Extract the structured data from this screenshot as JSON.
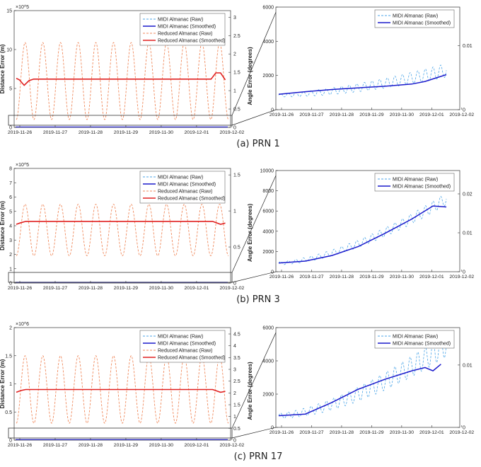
{
  "captions": [
    "(a) PRN 1",
    "(b) PRN 3",
    "(c) PRN 17"
  ],
  "chart_data": [
    {
      "type": "line",
      "panel": "PRN 1 full",
      "xlabel": "",
      "ylabel": "Distance Error (m)",
      "y2label": "Angle Error (degrees)",
      "y_exponent": "×10^5",
      "x_ticks": [
        "2019-11-26",
        "2019-11-27",
        "2019-11-28",
        "2019-11-29",
        "2019-11-30",
        "2019-12-01",
        "2019-12-02"
      ],
      "xlim": [
        0,
        6.7
      ],
      "ylim": [
        0,
        15
      ],
      "y_ticks": [
        0,
        5,
        10,
        15
      ],
      "y2lim": [
        0,
        3.2
      ],
      "y2_ticks": [
        0,
        0.5,
        1,
        1.5,
        2,
        2.5,
        3
      ],
      "legend": "top-right",
      "series": [
        {
          "name": "MIDI Almanac (Raw)",
          "color": "#4da6e8",
          "dash": true,
          "values": [
            0.05
          ]
        },
        {
          "name": "MIDI Almanac (Smoothed)",
          "color": "#1a1acc",
          "dash": false,
          "values": [
            0.05
          ]
        },
        {
          "name": "Reduced Almanac (Raw)",
          "color": "#f08a5d",
          "dash": true,
          "amplitude": [
            1.0,
            10.9
          ],
          "cycles": 12
        },
        {
          "name": "Reduced Almanac (Smoothed)",
          "color": "#e02020",
          "dash": false,
          "x": [
            0,
            0.1,
            0.25,
            0.4,
            0.55,
            6.15,
            6.3,
            6.45,
            6.6
          ],
          "values": [
            6.3,
            6.1,
            5.4,
            6.0,
            6.2,
            6.2,
            7.0,
            7.0,
            6.1
          ]
        }
      ]
    },
    {
      "type": "line",
      "panel": "PRN 1 zoom",
      "ylim": [
        0,
        6000
      ],
      "y_ticks": [
        0,
        2000,
        4000,
        6000
      ],
      "y2_ticks": [
        "0",
        "0.01"
      ],
      "x_ticks": [
        "2019-11-26",
        "2019-11-27",
        "2019-11-28",
        "2019-11-29",
        "2019-11-30",
        "2019-12-01",
        "2019-12-02"
      ],
      "legend": "top-right",
      "series": [
        {
          "name": "MIDI Almanac (Raw)",
          "color": "#4da6e8",
          "dash": true,
          "start": 850,
          "end": 2300,
          "amplitude": [
            200,
            800
          ]
        },
        {
          "name": "MIDI Almanac (Smoothed)",
          "color": "#1a1acc",
          "dash": false,
          "x": [
            0,
            1,
            2,
            3,
            4,
            5,
            5.5,
            6.3
          ],
          "values": [
            900,
            1050,
            1180,
            1280,
            1370,
            1500,
            1650,
            2050
          ]
        }
      ]
    },
    {
      "type": "line",
      "panel": "PRN 3 full",
      "ylabel": "Distance Error (m)",
      "y2label": "Angle Error (degrees)",
      "y_exponent": "×10^5",
      "ylim": [
        0,
        8
      ],
      "y_ticks": [
        0,
        1,
        2,
        3,
        4,
        5,
        6,
        7,
        8
      ],
      "y2_ticks": [
        0,
        0.5,
        1,
        1.5
      ],
      "x_ticks": [
        "2019-11-26",
        "2019-11-27",
        "2019-11-28",
        "2019-11-29",
        "2019-11-30",
        "2019-12-01",
        "2019-12-02"
      ],
      "legend": "top-right",
      "series": [
        {
          "name": "MIDI Almanac (Raw)",
          "color": "#4da6e8",
          "dash": true,
          "values": [
            0.05
          ]
        },
        {
          "name": "MIDI Almanac (Smoothed)",
          "color": "#1a1acc",
          "dash": false,
          "values": [
            0.05
          ]
        },
        {
          "name": "Reduced Almanac (Raw)",
          "color": "#f08a5d",
          "dash": true,
          "amplitude": [
            1.9,
            5.5
          ],
          "cycles": 12
        },
        {
          "name": "Reduced Almanac (Smoothed)",
          "color": "#e02020",
          "dash": false,
          "values": [
            4.1,
            4.3
          ]
        }
      ]
    },
    {
      "type": "line",
      "panel": "PRN 3 zoom",
      "ylim": [
        0,
        10000
      ],
      "y_ticks": [
        0,
        2000,
        4000,
        6000,
        8000,
        10000
      ],
      "y2_ticks": [
        "0",
        "0.01",
        "0.02"
      ],
      "x_ticks": [
        "2019-11-26",
        "2019-11-27",
        "2019-11-28",
        "2019-11-29",
        "2019-11-30",
        "2019-12-01",
        "2019-12-02"
      ],
      "legend": "top-right",
      "series": [
        {
          "name": "MIDI Almanac (Raw)",
          "color": "#4da6e8",
          "dash": true,
          "start": 850,
          "end": 7200,
          "amplitude": [
            300,
            1200
          ]
        },
        {
          "name": "MIDI Almanac (Smoothed)",
          "color": "#1a1acc",
          "dash": false,
          "x": [
            0,
            1,
            2,
            3,
            4,
            5,
            5.8,
            6.3
          ],
          "values": [
            850,
            1050,
            1600,
            2500,
            3800,
            5200,
            6500,
            6400
          ]
        }
      ]
    },
    {
      "type": "line",
      "panel": "PRN 17 full",
      "ylabel": "Distance Error (m)",
      "y2label": "Angle Error (degrees)",
      "y_exponent": "×10^6",
      "ylim": [
        0,
        2
      ],
      "y_ticks": [
        0,
        0.5,
        1,
        1.5,
        2
      ],
      "y2_ticks": [
        0,
        0.5,
        1,
        1.5,
        2,
        2.5,
        3,
        3.5,
        4,
        4.5
      ],
      "x_ticks": [
        "2019-11-26",
        "2019-11-27",
        "2019-11-28",
        "2019-11-29",
        "2019-11-30",
        "2019-12-01",
        "2019-12-02"
      ],
      "legend": "top-right",
      "series": [
        {
          "name": "MIDI Almanac (Raw)",
          "color": "#4da6e8",
          "dash": true,
          "values": [
            0.01
          ]
        },
        {
          "name": "MIDI Almanac (Smoothed)",
          "color": "#1a1acc",
          "dash": false,
          "values": [
            0.01
          ]
        },
        {
          "name": "Reduced Almanac (Raw)",
          "color": "#f08a5d",
          "dash": true,
          "amplitude": [
            0.3,
            1.5
          ],
          "cycles": 12
        },
        {
          "name": "Reduced Almanac (Smoothed)",
          "color": "#e02020",
          "dash": false,
          "values": [
            0.85,
            0.9
          ]
        }
      ]
    },
    {
      "type": "line",
      "panel": "PRN 17 zoom",
      "ylim": [
        0,
        6000
      ],
      "y_ticks": [
        0,
        2000,
        4000,
        6000
      ],
      "y2_ticks": [
        "0",
        "0.01"
      ],
      "x_ticks": [
        "2019-11-26",
        "2019-11-27",
        "2019-11-28",
        "2019-11-29",
        "2019-11-30",
        "2019-12-01",
        "2019-12-02"
      ],
      "legend": "top-right",
      "series": [
        {
          "name": "MIDI Almanac (Raw)",
          "color": "#4da6e8",
          "dash": true,
          "start": 700,
          "end": 5000,
          "amplitude": [
            300,
            1500
          ]
        },
        {
          "name": "MIDI Almanac (Smoothed)",
          "color": "#1a1acc",
          "dash": false,
          "x": [
            0,
            1,
            2,
            3,
            4,
            5,
            5.5,
            5.8,
            6.1
          ],
          "values": [
            700,
            800,
            1500,
            2300,
            2900,
            3400,
            3600,
            3400,
            3800
          ]
        }
      ]
    }
  ]
}
